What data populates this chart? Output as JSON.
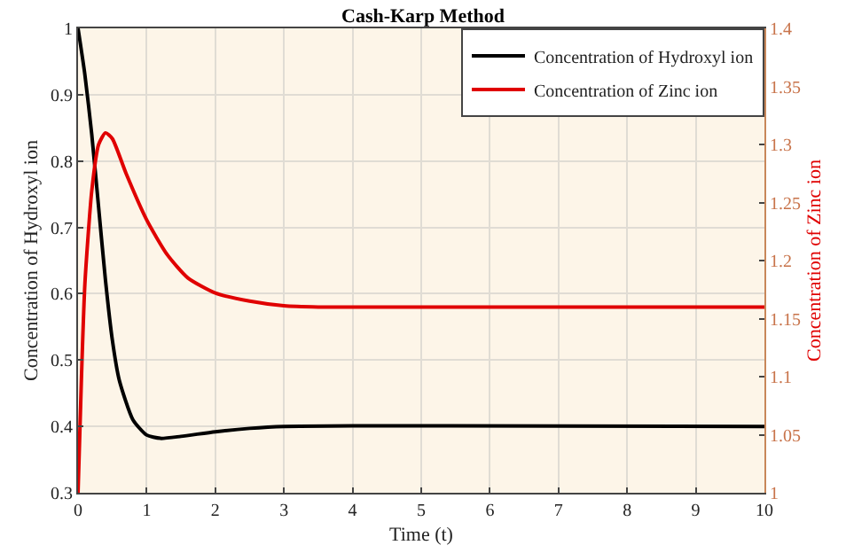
{
  "chart_data": {
    "type": "line",
    "title": "Cash-Karp Method",
    "xlabel": "Time (t)",
    "ylabel": "Concentration of Hydroxyl ion",
    "y2label": "Concentration of Zinc ion",
    "series": [
      {
        "name": "Concentration of Hydroxyl ion",
        "color": "#000000",
        "x": [
          0,
          0.1,
          0.2,
          0.3,
          0.4,
          0.5,
          0.6,
          0.8,
          1.0,
          1.2,
          1.5,
          2,
          2.5,
          3,
          4,
          10
        ],
        "values": [
          1.0,
          0.93,
          0.84,
          0.73,
          0.62,
          0.53,
          0.47,
          0.41,
          0.387,
          0.382,
          0.385,
          0.392,
          0.397,
          0.4,
          0.401,
          0.4
        ]
      },
      {
        "name": "Concentration of Zinc ion",
        "color": "#e00000",
        "axis": "y2",
        "x": [
          0,
          0.05,
          0.1,
          0.2,
          0.3,
          0.4,
          0.5,
          0.7,
          1.0,
          1.3,
          1.6,
          2,
          2.5,
          3,
          3.5,
          10
        ],
        "values": [
          1.0,
          1.1,
          1.18,
          1.26,
          1.3,
          1.31,
          1.305,
          1.275,
          1.235,
          1.205,
          1.185,
          1.172,
          1.165,
          1.161,
          1.16,
          1.16
        ]
      }
    ],
    "xlim": [
      0,
      10
    ],
    "xticks": [
      0,
      1,
      2,
      3,
      4,
      5,
      6,
      7,
      8,
      9,
      10
    ],
    "ylim": [
      0.3,
      1
    ],
    "yticks": [
      0.3,
      0.4,
      0.5,
      0.6,
      0.7,
      0.8,
      0.9,
      1
    ],
    "y2lim": [
      1,
      1.4
    ],
    "y2ticks": [
      1,
      1.05,
      1.1,
      1.15,
      1.2,
      1.25,
      1.3,
      1.35,
      1.4
    ],
    "grid": true,
    "legend": "top right",
    "line_style": "solid"
  }
}
